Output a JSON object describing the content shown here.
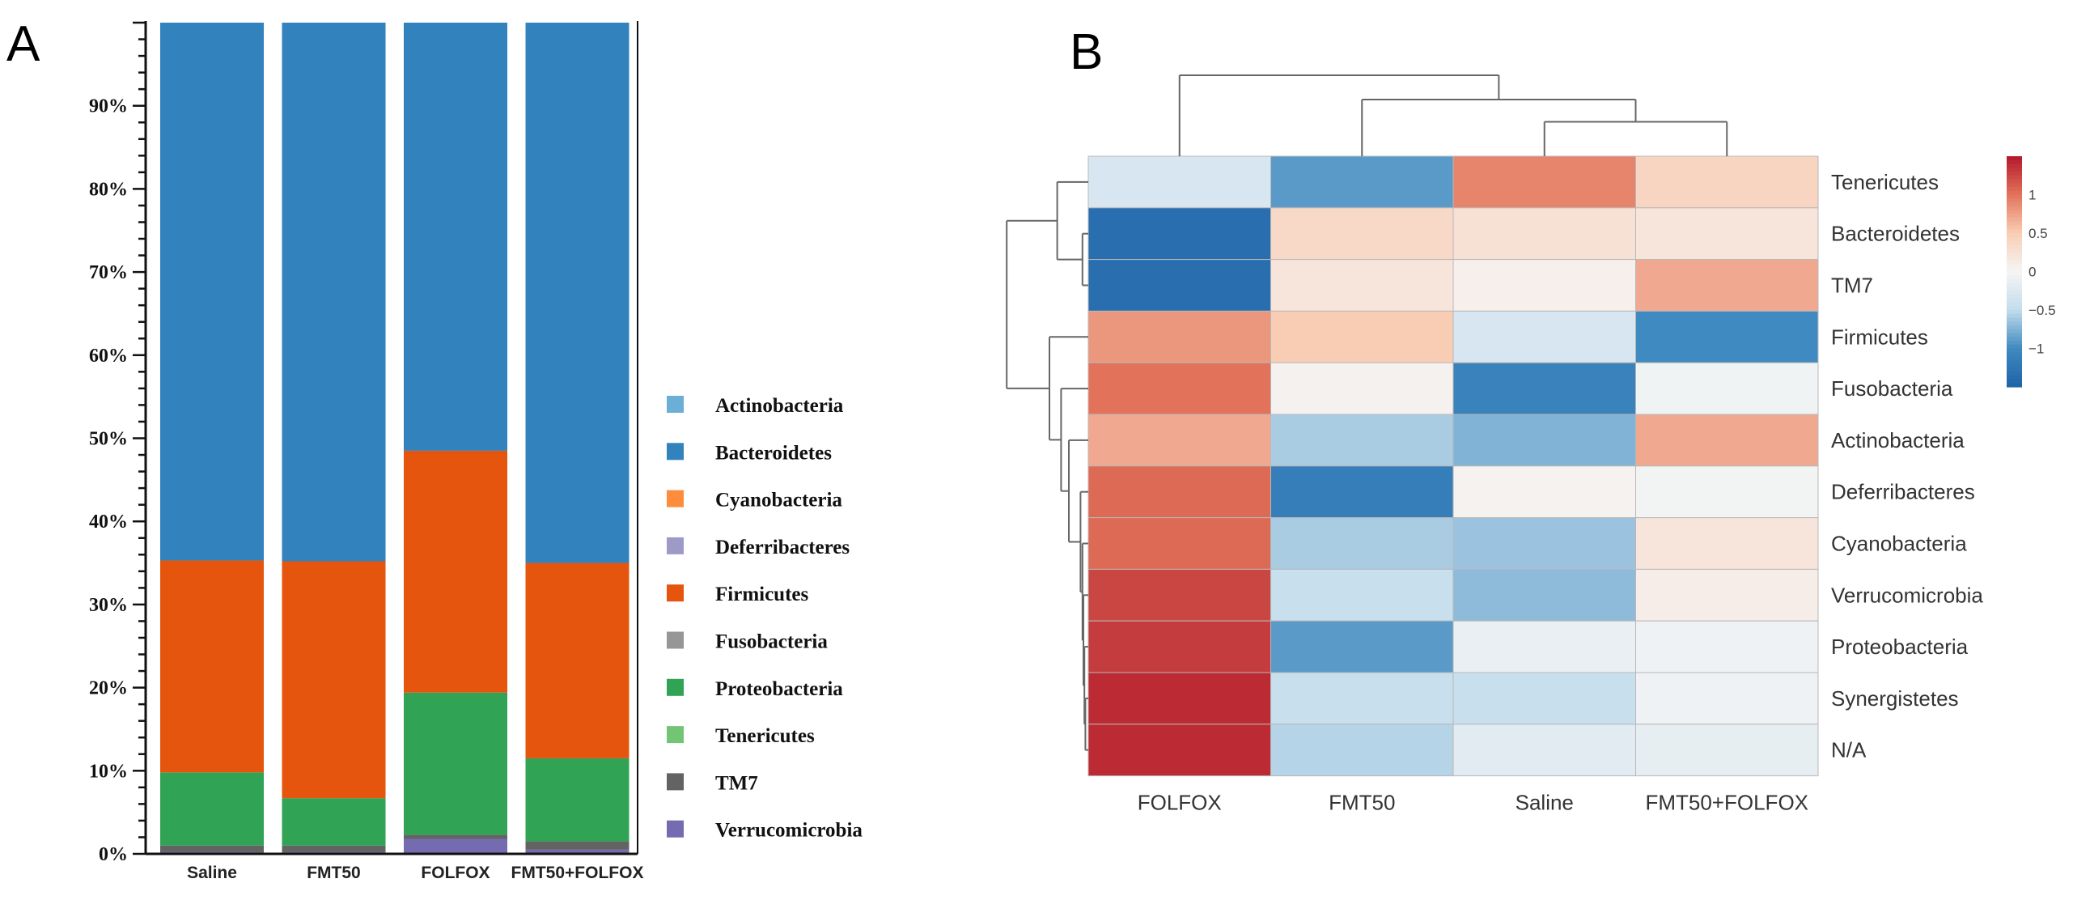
{
  "chart_data": [
    {
      "panel": "A",
      "type": "bar",
      "stacked": true,
      "categories": [
        "Saline",
        "FMT50",
        "FOLFOX",
        "FMT50+FOLFOX"
      ],
      "ylim": [
        0,
        100
      ],
      "yticks": [
        "0%",
        "10%",
        "20%",
        "30%",
        "40%",
        "50%",
        "60%",
        "70%",
        "80%",
        "90%"
      ],
      "legend_position": "right",
      "series": [
        {
          "name": "Verrucomicrobia",
          "color": "#756bb1",
          "values": [
            0.2,
            0.2,
            1.8,
            0.5
          ]
        },
        {
          "name": "TM7",
          "color": "#636363",
          "values": [
            0.8,
            0.8,
            0.5,
            1.0
          ]
        },
        {
          "name": "Proteobacteria",
          "color": "#31a354",
          "values": [
            8.8,
            5.7,
            17.1,
            10.0
          ]
        },
        {
          "name": "Firmicutes",
          "color": "#e6550d",
          "values": [
            25.5,
            28.5,
            29.1,
            23.5
          ]
        },
        {
          "name": "Bacteroidetes",
          "color": "#3182bd",
          "values": [
            64.7,
            64.8,
            51.5,
            65.0
          ]
        },
        {
          "name": "Actinobacteria",
          "color": "#6baed6",
          "values": [
            0,
            0,
            0,
            0
          ]
        },
        {
          "name": "Cyanobacteria",
          "color": "#fd8d3c",
          "values": [
            0,
            0,
            0,
            0
          ]
        },
        {
          "name": "Deferribacteres",
          "color": "#9e9ac8",
          "values": [
            0,
            0,
            0,
            0
          ]
        },
        {
          "name": "Fusobacteria",
          "color": "#969696",
          "values": [
            0,
            0,
            0,
            0
          ]
        },
        {
          "name": "Tenericutes",
          "color": "#74c476",
          "values": [
            0,
            0,
            0,
            0
          ]
        }
      ],
      "legend": [
        "Actinobacteria",
        "Bacteroidetes",
        "Cyanobacteria",
        "Deferribacteres",
        "Firmicutes",
        "Fusobacteria",
        "Proteobacteria",
        "Tenericutes",
        "TM7",
        "Verrucomicrobia"
      ]
    },
    {
      "panel": "B",
      "type": "heatmap",
      "columns": [
        "FOLFOX",
        "FMT50",
        "Saline",
        "FMT50+FOLFOX"
      ],
      "rows": [
        "Tenericutes",
        "Bacteroidetes",
        "TM7",
        "Firmicutes",
        "Fusobacteria",
        "Actinobacteria",
        "Deferribacteres",
        "Cyanobacteria",
        "Verrucomicrobia",
        "Proteobacteria",
        "Synergistetes",
        "N/A"
      ],
      "values": [
        [
          -0.3,
          -0.9,
          0.9,
          0.4
        ],
        [
          -1.35,
          0.35,
          0.25,
          0.2
        ],
        [
          -1.35,
          0.2,
          0.08,
          0.7
        ],
        [
          0.8,
          0.5,
          -0.3,
          -1.0
        ],
        [
          1.0,
          0.05,
          -1.1,
          -0.05
        ],
        [
          0.7,
          -0.6,
          -0.75,
          0.7
        ],
        [
          1.05,
          -1.15,
          0.04,
          -0.03
        ],
        [
          1.05,
          -0.6,
          -0.65,
          0.2
        ],
        [
          1.25,
          -0.45,
          -0.7,
          0.1
        ],
        [
          1.3,
          -0.9,
          -0.12,
          -0.06
        ],
        [
          1.4,
          -0.45,
          -0.45,
          -0.07
        ],
        [
          1.4,
          -0.55,
          -0.2,
          -0.15
        ]
      ],
      "colorbar": {
        "range": [
          -1.5,
          1.5
        ],
        "ticks": [
          1,
          0.5,
          0,
          -0.5,
          -1
        ],
        "tick_labels": [
          "1",
          "0.5",
          "0",
          "−0.5",
          "−1"
        ]
      },
      "column_dendrogram": {
        "h": 4,
        "children": [
          "FOLFOX",
          {
            "h": 2.8,
            "children": [
              "FMT50",
              {
                "h": 1.7,
                "children": [
                  "Saline",
                  "FMT50+FOLFOX"
                ]
              }
            ]
          }
        ]
      },
      "row_dendrogram": {
        "h": 4.2,
        "children": [
          {
            "h": 1.6,
            "children": [
              "Tenericutes",
              {
                "h": 0.3,
                "children": [
                  "Bacteroidetes",
                  "TM7"
                ]
              }
            ]
          },
          {
            "h": 2.0,
            "children": [
              "Firmicutes",
              {
                "h": 1.4,
                "children": [
                  "Fusobacteria",
                  {
                    "h": 1.0,
                    "children": [
                      "Actinobacteria",
                      {
                        "h": 0.4,
                        "children": [
                          "Deferribacteres",
                          {
                            "h": 0.3,
                            "children": [
                              "Cyanobacteria",
                              {
                                "h": 0.25,
                                "children": [
                                  "Verrucomicrobia",
                                  {
                                    "h": 0.2,
                                    "children": [
                                      "Proteobacteria",
                                      {
                                        "h": 0.15,
                                        "children": [
                                          "Synergistetes",
                                          "N/A"
                                        ]
                                      }
                                    ]
                                  }
                                ]
                              }
                            ]
                          }
                        ]
                      }
                    ]
                  }
                ]
              }
            ]
          }
        ]
      }
    }
  ],
  "labels": {
    "panel_a": "A",
    "panel_b": "B"
  }
}
